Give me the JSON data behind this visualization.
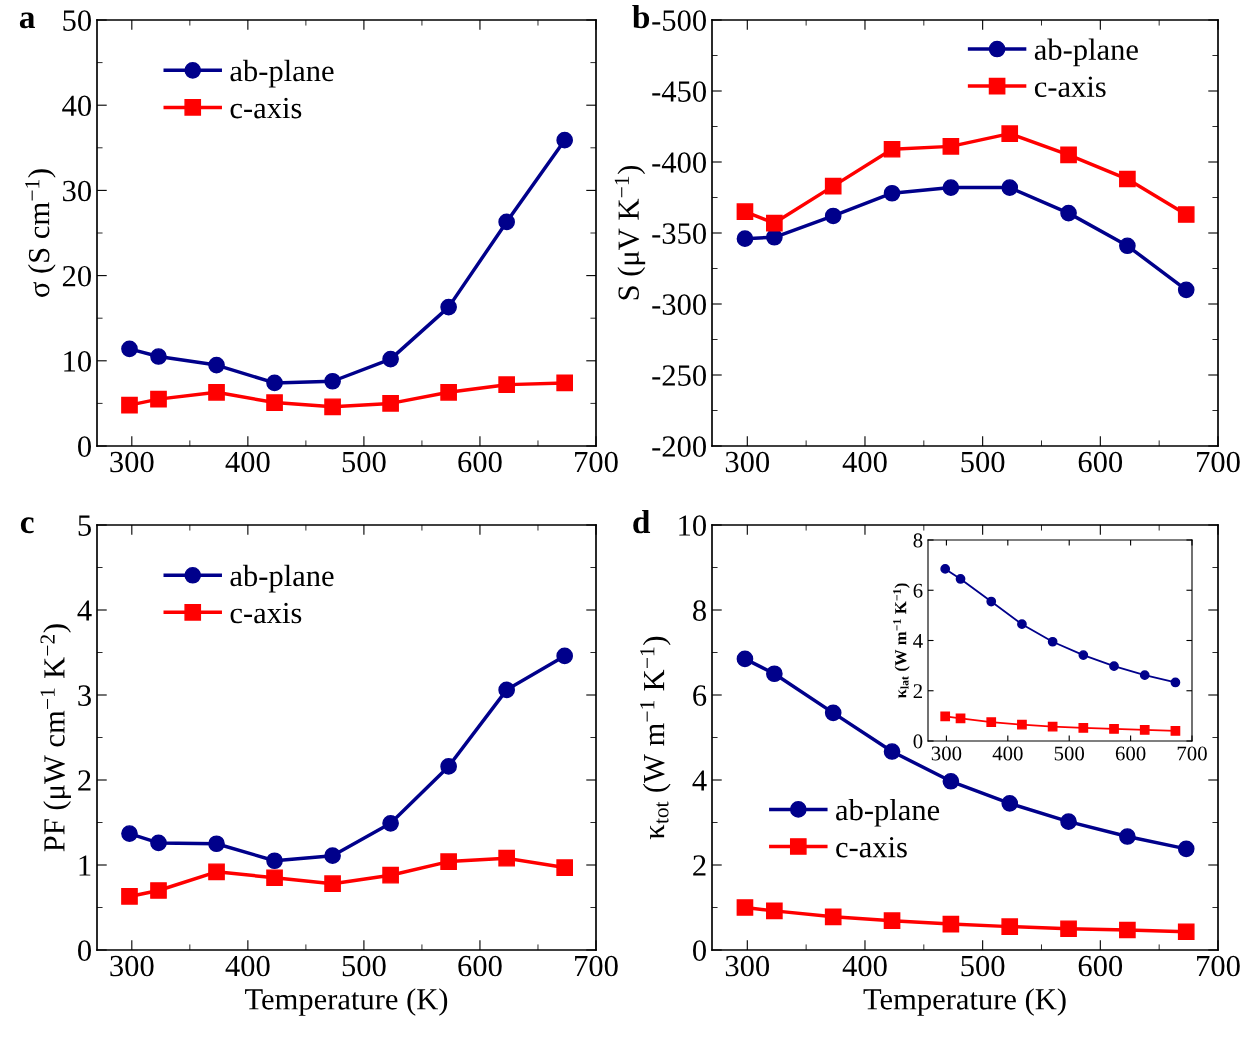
{
  "chart_data": [
    {
      "type": "line",
      "title": "a",
      "ylabel": "σ (S cm$^{−1}$)",
      "legend": "top left",
      "x": [
        298,
        323,
        373,
        423,
        473,
        523,
        573,
        623,
        673
      ],
      "series": [
        {
          "name": "ab-plane",
          "color": "#00008b",
          "marker": "circle",
          "values": [
            11.4,
            10.5,
            9.5,
            7.4,
            7.6,
            10.2,
            16.3,
            26.3,
            35.9
          ]
        },
        {
          "name": "c-axis",
          "color": "#ff0000",
          "marker": "square",
          "values": [
            4.8,
            5.5,
            6.3,
            5.1,
            4.6,
            5.0,
            6.3,
            7.2,
            7.4
          ]
        }
      ],
      "xlim": [
        270,
        700
      ],
      "xticks": [
        300,
        {
          "value": 350,
          "label": null
        },
        400,
        {
          "value": 450,
          "label": null
        },
        500,
        {
          "value": 550,
          "label": null
        },
        600,
        {
          "value": 650,
          "label": null
        },
        700
      ],
      "ylim": [
        0,
        50
      ],
      "yticks": [
        0,
        {
          "value": 5,
          "label": null
        },
        10,
        {
          "value": 15,
          "label": null
        },
        20,
        {
          "value": 25,
          "label": null
        },
        30,
        {
          "value": 35,
          "label": null
        },
        40,
        {
          "value": 45,
          "label": null
        },
        50
      ],
      "line_style": "solid",
      "grid": false
    },
    {
      "type": "line",
      "title": "b",
      "ylabel": "S (μV K$^{−1}$)",
      "legend": "top right",
      "x": [
        298,
        323,
        373,
        423,
        473,
        523,
        573,
        623,
        673
      ],
      "series": [
        {
          "name": "ab-plane",
          "color": "#00008b",
          "marker": "circle",
          "values": [
            -346,
            -347,
            -362,
            -378,
            -382,
            -382,
            -364,
            -341,
            -310
          ]
        },
        {
          "name": "c-axis",
          "color": "#ff0000",
          "marker": "square",
          "values": [
            -365,
            -357,
            -383,
            -409,
            -411,
            -420,
            -405,
            -388,
            -363
          ]
        }
      ],
      "xlim": [
        270,
        700
      ],
      "xticks": [
        300,
        {
          "value": 350,
          "label": null
        },
        400,
        {
          "value": 450,
          "label": null
        },
        500,
        {
          "value": 550,
          "label": null
        },
        600,
        {
          "value": 650,
          "label": null
        },
        700
      ],
      "ylim": [
        -200,
        -500
      ],
      "yticks": [
        -200,
        {
          "value": -225,
          "label": null
        },
        -250,
        {
          "value": -275,
          "label": null
        },
        -300,
        {
          "value": -325,
          "label": null
        },
        -350,
        {
          "value": -375,
          "label": null
        },
        -400,
        {
          "value": -425,
          "label": null
        },
        -450,
        {
          "value": -475,
          "label": null
        },
        -500
      ],
      "line_style": "solid",
      "grid": false
    },
    {
      "type": "line",
      "title": "c",
      "xlabel": "Temperature (K)",
      "ylabel": "PF (μW cm$^{−1}$ K$^{−2}$)",
      "legend": "top left",
      "x": [
        298,
        323,
        373,
        423,
        473,
        523,
        573,
        623,
        673
      ],
      "series": [
        {
          "name": "ab-plane",
          "color": "#00008b",
          "marker": "circle",
          "values": [
            1.37,
            1.26,
            1.25,
            1.05,
            1.11,
            1.49,
            2.16,
            3.06,
            3.46
          ]
        },
        {
          "name": "c-axis",
          "color": "#ff0000",
          "marker": "square",
          "values": [
            0.63,
            0.7,
            0.92,
            0.85,
            0.78,
            0.88,
            1.04,
            1.08,
            0.97
          ]
        }
      ],
      "xlim": [
        270,
        700
      ],
      "xticks": [
        300,
        {
          "value": 350,
          "label": null
        },
        400,
        {
          "value": 450,
          "label": null
        },
        500,
        {
          "value": 550,
          "label": null
        },
        600,
        {
          "value": 650,
          "label": null
        },
        700
      ],
      "ylim": [
        0,
        5
      ],
      "yticks": [
        0,
        {
          "value": 0.5,
          "label": null
        },
        1,
        {
          "value": 1.5,
          "label": null
        },
        2,
        {
          "value": 2.5,
          "label": null
        },
        3,
        {
          "value": 3.5,
          "label": null
        },
        4,
        {
          "value": 4.5,
          "label": null
        },
        5
      ],
      "line_style": "solid",
      "grid": false
    },
    {
      "type": "line",
      "title": "d",
      "xlabel": "Temperature (K)",
      "ylabel": "κ$_{tot}$ (W m$^{−1}$ K$^{−1}$)",
      "legend": "bottom left",
      "x": [
        298,
        323,
        373,
        423,
        473,
        523,
        573,
        623,
        673
      ],
      "series": [
        {
          "name": "ab-plane",
          "color": "#00008b",
          "marker": "circle",
          "values": [
            6.85,
            6.5,
            5.58,
            4.67,
            3.97,
            3.45,
            3.02,
            2.67,
            2.38
          ]
        },
        {
          "name": "c-axis",
          "color": "#ff0000",
          "marker": "square",
          "values": [
            1.0,
            0.92,
            0.78,
            0.69,
            0.61,
            0.55,
            0.5,
            0.47,
            0.43
          ]
        }
      ],
      "xlim": [
        270,
        700
      ],
      "xticks": [
        300,
        {
          "value": 350,
          "label": null
        },
        400,
        {
          "value": 450,
          "label": null
        },
        500,
        {
          "value": 550,
          "label": null
        },
        600,
        {
          "value": 650,
          "label": null
        },
        700
      ],
      "ylim": [
        0,
        10
      ],
      "yticks": [
        0,
        {
          "value": 1,
          "label": null
        },
        2,
        {
          "value": 3,
          "label": null
        },
        4,
        {
          "value": 5,
          "label": null
        },
        6,
        {
          "value": 7,
          "label": null
        },
        8,
        {
          "value": 9,
          "label": null
        },
        10
      ],
      "line_style": "solid",
      "grid": false
    },
    {
      "type": "line",
      "ylabel": "κ$_{lat}$ (W m$^{−1}$ K$^{−1}$)",
      "x": [
        298,
        323,
        373,
        423,
        473,
        523,
        573,
        623,
        673
      ],
      "series": [
        {
          "color": "#00008b",
          "marker": "circle",
          "values": [
            6.85,
            6.45,
            5.55,
            4.65,
            3.95,
            3.42,
            2.98,
            2.62,
            2.33
          ]
        },
        {
          "color": "#ff0000",
          "marker": "square",
          "values": [
            0.98,
            0.9,
            0.75,
            0.65,
            0.57,
            0.52,
            0.48,
            0.44,
            0.4
          ]
        }
      ],
      "xlim": [
        270,
        700
      ],
      "xticks": [
        300,
        400,
        500,
        600,
        700
      ],
      "ylim": [
        0,
        8
      ],
      "yticks": [
        0,
        2,
        4,
        6,
        8
      ],
      "line_style": "solid",
      "grid": false
    }
  ]
}
